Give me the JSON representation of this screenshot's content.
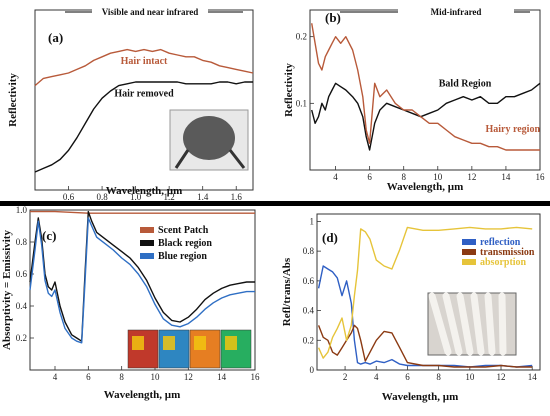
{
  "chart_data": [
    {
      "id": "a",
      "type": "line",
      "panel_label": "(a)",
      "header": "Visible and near infrared",
      "xlabel": "Wavelength, µm",
      "ylabel": "Reflectivity",
      "xlim": [
        0.4,
        1.7
      ],
      "ylim": [
        0,
        1
      ],
      "xticks": [
        0.6,
        0.8,
        1.0,
        1.2,
        1.4,
        1.6
      ],
      "xtick_labels": [
        "0.6",
        "0.8",
        "1.0",
        "1.2",
        "1.4",
        "1.6"
      ],
      "yticks": [],
      "colors": {
        "hair_intact": "#b85a3a",
        "hair_removed": "#111111"
      },
      "annotations": [
        {
          "text": "Hair intact",
          "color": "#b85a3a",
          "x": 1.05,
          "y": 0.7
        },
        {
          "text": "Hair removed",
          "color": "#111111",
          "x": 1.05,
          "y": 0.52
        }
      ],
      "inset": "photo of insect head (micrograph)",
      "series": [
        {
          "key": "hair_intact",
          "x": [
            0.4,
            0.45,
            0.5,
            0.55,
            0.6,
            0.65,
            0.7,
            0.75,
            0.8,
            0.85,
            0.9,
            0.95,
            1.0,
            1.05,
            1.1,
            1.15,
            1.2,
            1.25,
            1.3,
            1.35,
            1.4,
            1.45,
            1.5,
            1.55,
            1.6,
            1.65,
            1.7
          ],
          "values": [
            0.58,
            0.62,
            0.63,
            0.64,
            0.65,
            0.67,
            0.69,
            0.72,
            0.74,
            0.76,
            0.77,
            0.78,
            0.77,
            0.78,
            0.77,
            0.78,
            0.76,
            0.75,
            0.74,
            0.74,
            0.72,
            0.71,
            0.69,
            0.68,
            0.67,
            0.66,
            0.65
          ]
        },
        {
          "key": "hair_removed",
          "x": [
            0.4,
            0.45,
            0.5,
            0.55,
            0.6,
            0.65,
            0.7,
            0.75,
            0.8,
            0.85,
            0.9,
            0.95,
            1.0,
            1.05,
            1.1,
            1.15,
            1.2,
            1.25,
            1.3,
            1.35,
            1.4,
            1.45,
            1.5,
            1.55,
            1.6,
            1.65,
            1.7
          ],
          "values": [
            0.1,
            0.12,
            0.14,
            0.17,
            0.22,
            0.29,
            0.37,
            0.45,
            0.51,
            0.55,
            0.58,
            0.59,
            0.6,
            0.6,
            0.6,
            0.6,
            0.6,
            0.6,
            0.59,
            0.59,
            0.59,
            0.59,
            0.6,
            0.6,
            0.59,
            0.6,
            0.6
          ]
        }
      ]
    },
    {
      "id": "b",
      "type": "line",
      "panel_label": "(b)",
      "header": "Mid-infrared",
      "xlabel": "Wavelength, µm",
      "ylabel": "Reflectivity",
      "xlim": [
        2.5,
        16
      ],
      "ylim": [
        0,
        0.24
      ],
      "xticks": [
        4,
        6,
        8,
        10,
        12,
        14,
        16
      ],
      "xtick_labels": [
        "4",
        "6",
        "8",
        "10",
        "12",
        "14",
        "16"
      ],
      "yticks": [
        0.1,
        0.2
      ],
      "ytick_labels": [
        "0.1",
        "0.2"
      ],
      "colors": {
        "bald": "#111111",
        "hairy": "#b85a3a"
      },
      "annotations": [
        {
          "text": "Bald Region",
          "color": "#111111",
          "x": 11.6,
          "y": 0.125
        },
        {
          "text": "Hairy region",
          "color": "#b85a3a",
          "x": 14.4,
          "y": 0.057
        }
      ],
      "series": [
        {
          "key": "bald",
          "x": [
            2.6,
            2.8,
            3.0,
            3.2,
            3.4,
            3.6,
            3.8,
            4.0,
            4.3,
            4.6,
            5.0,
            5.3,
            5.6,
            5.8,
            6.0,
            6.3,
            6.6,
            7.0,
            7.5,
            8.0,
            8.5,
            9.0,
            9.5,
            10.0,
            10.5,
            11.0,
            11.5,
            12.0,
            12.5,
            13.0,
            13.5,
            14.0,
            14.5,
            15.0,
            15.5,
            16.0
          ],
          "values": [
            0.09,
            0.07,
            0.08,
            0.1,
            0.09,
            0.11,
            0.12,
            0.13,
            0.125,
            0.12,
            0.11,
            0.1,
            0.08,
            0.05,
            0.03,
            0.07,
            0.09,
            0.1,
            0.095,
            0.09,
            0.085,
            0.08,
            0.085,
            0.09,
            0.1,
            0.105,
            0.11,
            0.105,
            0.11,
            0.1,
            0.1,
            0.11,
            0.11,
            0.115,
            0.12,
            0.13
          ]
        },
        {
          "key": "hairy",
          "x": [
            2.6,
            2.8,
            3.0,
            3.2,
            3.4,
            3.6,
            3.8,
            4.0,
            4.3,
            4.6,
            5.0,
            5.3,
            5.6,
            5.8,
            6.0,
            6.3,
            6.6,
            7.0,
            7.5,
            8.0,
            8.5,
            9.0,
            9.5,
            10.0,
            10.5,
            11.0,
            11.5,
            12.0,
            12.5,
            13.0,
            13.5,
            14.0,
            14.5,
            15.0,
            15.5,
            16.0
          ],
          "values": [
            0.22,
            0.19,
            0.16,
            0.15,
            0.17,
            0.18,
            0.19,
            0.2,
            0.19,
            0.2,
            0.18,
            0.15,
            0.11,
            0.06,
            0.04,
            0.13,
            0.11,
            0.12,
            0.1,
            0.09,
            0.09,
            0.08,
            0.07,
            0.07,
            0.06,
            0.05,
            0.045,
            0.04,
            0.04,
            0.035,
            0.035,
            0.03,
            0.03,
            0.03,
            0.03,
            0.03
          ]
        }
      ]
    },
    {
      "id": "c",
      "type": "line",
      "panel_label": "(c)",
      "xlabel": "Wavelength, µm",
      "ylabel": "Absorptivity = Emissivity",
      "xlim": [
        2.5,
        16
      ],
      "ylim": [
        0,
        1.0
      ],
      "xticks": [
        4,
        6,
        8,
        10,
        12,
        14,
        16
      ],
      "xtick_labels": [
        "4",
        "6",
        "8",
        "10",
        "12",
        "14",
        "16"
      ],
      "yticks": [
        0.2,
        0.4,
        0.6,
        0.8,
        1.0
      ],
      "ytick_labels": [
        "0.2",
        "0.4",
        "0.6",
        "0.8",
        "1.0"
      ],
      "colors": {
        "scent": "#b85a3a",
        "black": "#111111",
        "blue": "#2f6fc4"
      },
      "legend": [
        {
          "label": "Scent Patch",
          "color": "#b85a3a"
        },
        {
          "label": "Black region",
          "color": "#111111"
        },
        {
          "label": "Blue region",
          "color": "#2f6fc4"
        }
      ],
      "inset": "photo of colored wing samples",
      "series": [
        {
          "key": "scent",
          "x": [
            2.5,
            4,
            6,
            8,
            10,
            12,
            14,
            16
          ],
          "values": [
            0.99,
            0.99,
            0.98,
            0.98,
            0.98,
            0.98,
            0.98,
            0.98
          ]
        },
        {
          "key": "black",
          "x": [
            2.5,
            2.8,
            3.0,
            3.2,
            3.4,
            3.6,
            3.8,
            4.0,
            4.3,
            4.6,
            5.0,
            5.3,
            5.6,
            5.8,
            6.0,
            6.2,
            6.5,
            7.0,
            7.5,
            8.0,
            8.5,
            9.0,
            9.5,
            10.0,
            10.5,
            11.0,
            11.5,
            12.0,
            12.5,
            13.0,
            13.5,
            14.0,
            14.5,
            15.0,
            15.5,
            16.0
          ],
          "values": [
            0.55,
            0.8,
            0.95,
            0.82,
            0.6,
            0.52,
            0.5,
            0.55,
            0.4,
            0.3,
            0.22,
            0.2,
            0.18,
            0.6,
            0.99,
            0.93,
            0.86,
            0.82,
            0.78,
            0.74,
            0.7,
            0.64,
            0.56,
            0.45,
            0.36,
            0.31,
            0.3,
            0.33,
            0.38,
            0.44,
            0.48,
            0.51,
            0.53,
            0.54,
            0.55,
            0.55
          ]
        },
        {
          "key": "blue",
          "x": [
            2.5,
            2.8,
            3.0,
            3.2,
            3.4,
            3.6,
            3.8,
            4.0,
            4.3,
            4.6,
            5.0,
            5.3,
            5.6,
            5.8,
            6.0,
            6.2,
            6.5,
            7.0,
            7.5,
            8.0,
            8.5,
            9.0,
            9.5,
            10.0,
            10.5,
            11.0,
            11.5,
            12.0,
            12.5,
            13.0,
            13.5,
            14.0,
            14.5,
            15.0,
            15.5,
            16.0
          ],
          "values": [
            0.5,
            0.75,
            0.93,
            0.78,
            0.56,
            0.48,
            0.46,
            0.5,
            0.36,
            0.26,
            0.2,
            0.18,
            0.17,
            0.55,
            0.95,
            0.9,
            0.83,
            0.79,
            0.75,
            0.7,
            0.66,
            0.6,
            0.52,
            0.41,
            0.32,
            0.28,
            0.27,
            0.29,
            0.33,
            0.38,
            0.42,
            0.45,
            0.47,
            0.48,
            0.49,
            0.49
          ]
        }
      ]
    },
    {
      "id": "d",
      "type": "line",
      "panel_label": "(d)",
      "xlabel": "Wavelength, µm",
      "ylabel": "Refl/trans/Abs",
      "xlim": [
        0.2,
        14.5
      ],
      "ylim": [
        0,
        1.05
      ],
      "xticks": [
        2,
        4,
        6,
        8,
        10,
        12,
        14
      ],
      "xtick_labels": [
        "2",
        "4",
        "6",
        "8",
        "10",
        "12",
        "14"
      ],
      "yticks": [
        0,
        0.2,
        0.4,
        0.6,
        0.8,
        1
      ],
      "ytick_labels": [
        "0",
        "0.2",
        "0.4",
        "0.6",
        "0.8",
        "1"
      ],
      "colors": {
        "reflection": "#2f5fc4",
        "transmission": "#8b3a12",
        "absorption": "#e6c43a"
      },
      "legend": [
        {
          "label": "reflection",
          "color": "#2f5fc4"
        },
        {
          "label": "transmission",
          "color": "#8b3a12"
        },
        {
          "label": "absorption",
          "color": "#e6c43a"
        }
      ],
      "inset": "micrograph of hair fibers",
      "series": [
        {
          "key": "reflection",
          "x": [
            0.3,
            0.6,
            0.9,
            1.2,
            1.5,
            1.8,
            2.1,
            2.4,
            2.6,
            2.8,
            3.0,
            3.3,
            3.6,
            4.0,
            4.5,
            5.0,
            5.5,
            6.0,
            7.0,
            8.0,
            9.0,
            10.0,
            11.0,
            12.0,
            13.0,
            14.0
          ],
          "values": [
            0.55,
            0.7,
            0.68,
            0.66,
            0.62,
            0.5,
            0.6,
            0.45,
            0.2,
            0.05,
            0.04,
            0.05,
            0.04,
            0.06,
            0.05,
            0.07,
            0.04,
            0.03,
            0.03,
            0.03,
            0.03,
            0.02,
            0.03,
            0.03,
            0.02,
            0.03
          ]
        },
        {
          "key": "transmission",
          "x": [
            0.3,
            0.6,
            0.9,
            1.2,
            1.5,
            1.8,
            2.1,
            2.4,
            2.6,
            2.8,
            3.0,
            3.3,
            3.6,
            4.0,
            4.5,
            5.0,
            5.5,
            6.0,
            7.0,
            8.0,
            9.0,
            10.0,
            11.0,
            12.0,
            13.0,
            14.0
          ],
          "values": [
            0.3,
            0.22,
            0.2,
            0.12,
            0.1,
            0.15,
            0.2,
            0.25,
            0.3,
            0.28,
            0.2,
            0.06,
            0.12,
            0.2,
            0.26,
            0.25,
            0.15,
            0.05,
            0.03,
            0.03,
            0.02,
            0.02,
            0.02,
            0.03,
            0.02,
            0.02
          ]
        },
        {
          "key": "absorption",
          "x": [
            0.3,
            0.6,
            0.9,
            1.2,
            1.5,
            1.8,
            2.1,
            2.4,
            2.6,
            2.8,
            3.0,
            3.3,
            3.6,
            4.0,
            4.5,
            5.0,
            5.5,
            6.0,
            7.0,
            8.0,
            9.0,
            10.0,
            11.0,
            12.0,
            13.0,
            14.0
          ],
          "values": [
            0.15,
            0.08,
            0.12,
            0.22,
            0.28,
            0.35,
            0.2,
            0.3,
            0.5,
            0.67,
            0.95,
            0.93,
            0.88,
            0.74,
            0.7,
            0.68,
            0.81,
            0.96,
            0.94,
            0.94,
            0.95,
            0.96,
            0.95,
            0.95,
            0.96,
            0.95
          ]
        }
      ]
    }
  ]
}
